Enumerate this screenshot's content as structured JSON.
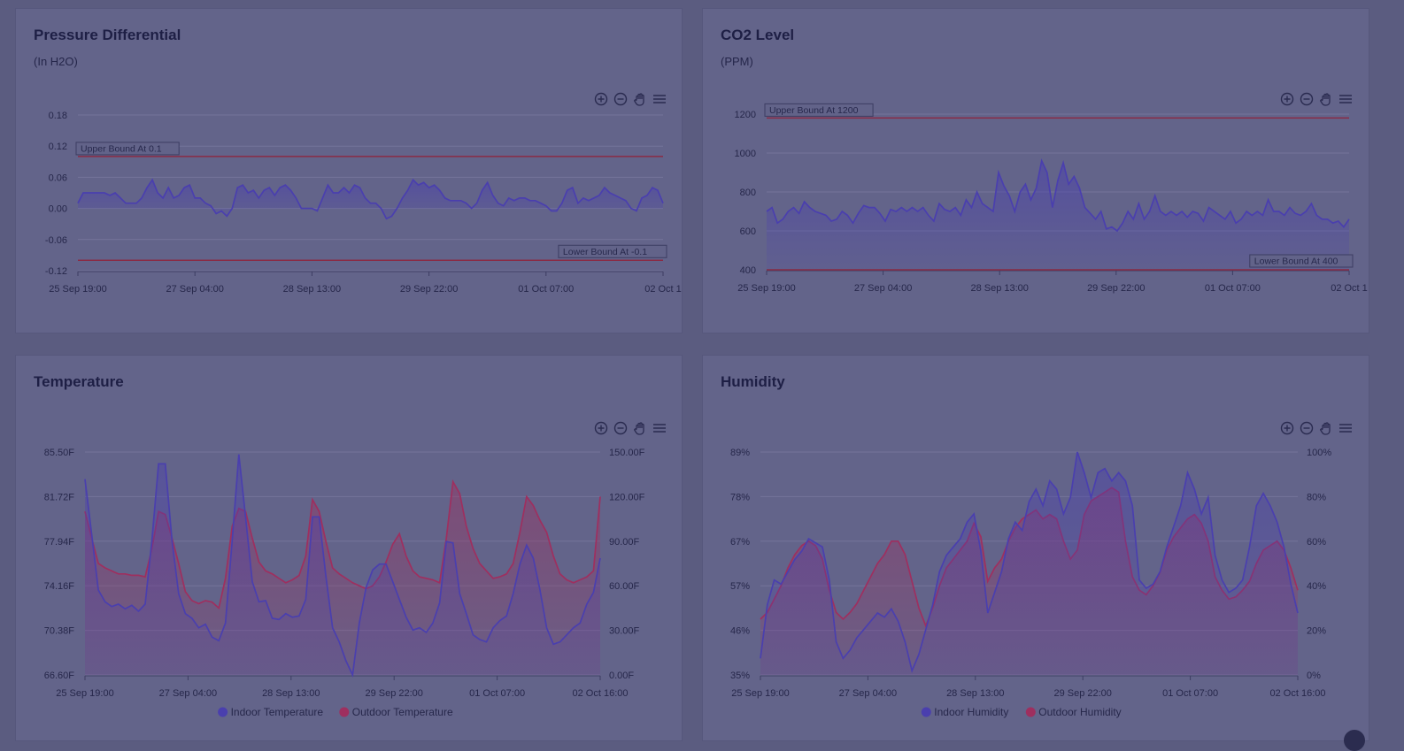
{
  "colors": {
    "indoor": "#4a3fae",
    "outdoor": "#9e2f5f",
    "bound_line": "#8a2b45",
    "grid": "#74759a",
    "panel": "#63648a",
    "title": "#1e1f45"
  },
  "toolbar_icons": [
    "zoom-in-icon",
    "zoom-out-icon",
    "pan-hand-icon",
    "menu-icon"
  ],
  "panels": {
    "pressure": {
      "title": "Pressure Differential",
      "subtitle": "(In H2O)"
    },
    "co2": {
      "title": "CO2 Level",
      "subtitle": "(PPM)"
    },
    "temperature": {
      "title": "Temperature",
      "subtitle": ""
    },
    "humidity": {
      "title": "Humidity",
      "subtitle": ""
    }
  },
  "chart_data": [
    {
      "id": "pressure",
      "type": "area",
      "title": "Pressure Differential",
      "subtitle": "(In H2O)",
      "x_tick_labels": [
        "25 Sep 19:00",
        "27 Sep 04:00",
        "28 Sep 13:00",
        "29 Sep 22:00",
        "01 Oct 07:00",
        "02 Oct 1"
      ],
      "y_tick_labels": [
        "0.18",
        "0.12",
        "0.06",
        "0.00",
        "-0.06",
        "-0.12"
      ],
      "ylim": [
        -0.12,
        0.18
      ],
      "annotations": [
        {
          "label": "Upper Bound At 0.1",
          "y": 0.1
        },
        {
          "label": "Lower Bound At -0.1",
          "y": -0.1
        }
      ],
      "series": [
        {
          "name": "",
          "values": [
            0.01,
            0.03,
            0.03,
            0.03,
            0.03,
            0.03,
            0.025,
            0.03,
            0.02,
            0.01,
            0.01,
            0.01,
            0.02,
            0.04,
            0.055,
            0.03,
            0.02,
            0.04,
            0.02,
            0.025,
            0.04,
            0.045,
            0.02,
            0.02,
            0.01,
            0.005,
            -0.01,
            -0.005,
            -0.015,
            0.0,
            0.04,
            0.045,
            0.03,
            0.035,
            0.02,
            0.035,
            0.04,
            0.025,
            0.04,
            0.045,
            0.035,
            0.02,
            0.0,
            0.0,
            0.0,
            -0.005,
            0.02,
            0.045,
            0.03,
            0.03,
            0.04,
            0.03,
            0.045,
            0.04,
            0.02,
            0.01,
            0.01,
            0.0,
            -0.02,
            -0.015,
            0.0,
            0.02,
            0.035,
            0.055,
            0.045,
            0.05,
            0.04,
            0.045,
            0.035,
            0.02,
            0.015,
            0.015,
            0.015,
            0.01,
            0.0,
            0.01,
            0.035,
            0.05,
            0.025,
            0.01,
            0.005,
            0.02,
            0.015,
            0.02,
            0.02,
            0.015,
            0.015,
            0.01,
            0.005,
            -0.005,
            -0.005,
            0.01,
            0.035,
            0.04,
            0.01,
            0.02,
            0.015,
            0.02,
            0.025,
            0.04,
            0.03,
            0.025,
            0.02,
            0.015,
            0.0,
            -0.005,
            0.02,
            0.025,
            0.04,
            0.035,
            0.01
          ]
        }
      ]
    },
    {
      "id": "co2",
      "type": "area",
      "title": "CO2 Level",
      "subtitle": "(PPM)",
      "x_tick_labels": [
        "25 Sep 19:00",
        "27 Sep 04:00",
        "28 Sep 13:00",
        "29 Sep 22:00",
        "01 Oct 07:00",
        "02 Oct 1"
      ],
      "y_tick_labels": [
        "1200",
        "1000",
        "800",
        "600",
        "400"
      ],
      "ylim": [
        400,
        1200
      ],
      "annotations": [
        {
          "label": "Upper Bound At 1200",
          "y": 1180
        },
        {
          "label": "Lower Bound At 400",
          "y": 400
        }
      ],
      "series": [
        {
          "name": "",
          "values": [
            700,
            720,
            640,
            660,
            700,
            720,
            690,
            750,
            720,
            700,
            690,
            680,
            650,
            660,
            700,
            680,
            640,
            690,
            730,
            720,
            720,
            690,
            650,
            710,
            700,
            720,
            700,
            720,
            700,
            720,
            680,
            650,
            740,
            710,
            700,
            720,
            680,
            760,
            720,
            800,
            740,
            720,
            700,
            900,
            830,
            780,
            700,
            800,
            840,
            760,
            820,
            960,
            900,
            720,
            860,
            950,
            840,
            880,
            820,
            720,
            690,
            660,
            700,
            610,
            620,
            600,
            640,
            700,
            660,
            740,
            660,
            700,
            780,
            700,
            680,
            700,
            680,
            700,
            670,
            700,
            690,
            650,
            720,
            700,
            680,
            660,
            700,
            640,
            660,
            700,
            680,
            700,
            680,
            760,
            700,
            700,
            680,
            720,
            690,
            680,
            700,
            740,
            680,
            660,
            660,
            640,
            650,
            620,
            660
          ]
        }
      ]
    },
    {
      "id": "temperature",
      "type": "area",
      "title": "",
      "x_tick_labels": [
        "25 Sep 19:00",
        "27 Sep 04:00",
        "28 Sep 13:00",
        "29 Sep 22:00",
        "01 Oct 07:00",
        "02 Oct 16:00"
      ],
      "y_left_tick_labels": [
        "85.50F",
        "81.72F",
        "77.94F",
        "74.16F",
        "70.38F",
        "66.60F"
      ],
      "y_right_tick_labels": [
        "150.00F",
        "120.00F",
        "90.00F",
        "60.00F",
        "30.00F",
        "0.00F"
      ],
      "ylim_left": [
        66.6,
        85.5
      ],
      "ylim_right": [
        0,
        150
      ],
      "legend_position": "bottom",
      "series": [
        {
          "name": "Indoor Temperature",
          "axis": "left",
          "values": [
            83.2,
            78.5,
            73.8,
            72.8,
            72.4,
            72.6,
            72.2,
            72.5,
            72.0,
            72.6,
            78.0,
            84.5,
            84.5,
            78.0,
            73.5,
            71.8,
            71.4,
            70.6,
            70.9,
            69.8,
            69.5,
            71.0,
            78.0,
            85.3,
            80.0,
            74.5,
            72.8,
            72.9,
            71.4,
            71.3,
            71.8,
            71.5,
            71.6,
            73.0,
            80.0,
            80.0,
            75.0,
            70.6,
            69.4,
            67.8,
            66.6,
            71.0,
            74.0,
            75.5,
            76.0,
            76.0,
            74.5,
            73.0,
            71.5,
            70.4,
            70.6,
            70.2,
            71.0,
            72.7,
            77.9,
            77.8,
            73.5,
            71.8,
            70.0,
            69.6,
            69.4,
            70.6,
            71.2,
            71.6,
            73.5,
            76.0,
            77.6,
            76.5,
            73.8,
            70.6,
            69.2,
            69.4,
            70.0,
            70.6,
            71.0,
            72.6,
            73.6,
            76.5
          ]
        },
        {
          "name": "Outdoor Temperature",
          "axis": "right",
          "values": [
            110,
            92,
            75,
            72,
            70,
            68,
            68,
            67,
            67,
            66,
            85,
            110,
            108,
            92,
            75,
            56,
            50,
            48,
            50,
            49,
            45,
            65,
            100,
            112,
            110,
            92,
            76,
            70,
            68,
            65,
            62,
            64,
            67,
            80,
            118,
            110,
            90,
            72,
            68,
            65,
            62,
            60,
            58,
            60,
            66,
            76,
            88,
            95,
            80,
            70,
            66,
            65,
            64,
            62,
            92,
            130,
            122,
            100,
            85,
            75,
            70,
            65,
            66,
            68,
            75,
            96,
            120,
            114,
            104,
            96,
            80,
            68,
            64,
            62,
            64,
            66,
            70,
            120
          ]
        }
      ]
    },
    {
      "id": "humidity",
      "type": "area",
      "title": "",
      "x_tick_labels": [
        "25 Sep 19:00",
        "27 Sep 04:00",
        "28 Sep 13:00",
        "29 Sep 22:00",
        "01 Oct 07:00",
        "02 Oct 16:00"
      ],
      "y_left_tick_labels": [
        "89%",
        "78%",
        "67%",
        "57%",
        "46%",
        "35%"
      ],
      "y_right_tick_labels": [
        "100%",
        "80%",
        "60%",
        "40%",
        "20%",
        "0%"
      ],
      "ylim_left": [
        35,
        89
      ],
      "ylim_right": [
        0,
        100
      ],
      "legend_position": "bottom",
      "series": [
        {
          "name": "Indoor Humidity",
          "axis": "left",
          "values": [
            39,
            52,
            58,
            57,
            60,
            63,
            65,
            68,
            67,
            66,
            58,
            43,
            39,
            41,
            44,
            46,
            48,
            50,
            49,
            51,
            48,
            43,
            36,
            40,
            46,
            52,
            60,
            64,
            66,
            68,
            72,
            74,
            65,
            50,
            55,
            60,
            68,
            72,
            70,
            77,
            80,
            76,
            82,
            80,
            74,
            78,
            89,
            84,
            78,
            84,
            85,
            82,
            84,
            82,
            76,
            58,
            56,
            57,
            60,
            66,
            71,
            76,
            84,
            80,
            74,
            78,
            64,
            58,
            55,
            56,
            58,
            66,
            76,
            79,
            76,
            72,
            66,
            57,
            50
          ]
        },
        {
          "name": "Outdoor Humidity",
          "axis": "right",
          "values": [
            25,
            28,
            34,
            40,
            48,
            54,
            58,
            60,
            58,
            52,
            38,
            28,
            25,
            28,
            32,
            38,
            44,
            50,
            54,
            60,
            60,
            54,
            42,
            30,
            22,
            30,
            40,
            48,
            52,
            56,
            60,
            68,
            62,
            42,
            48,
            52,
            60,
            66,
            70,
            72,
            74,
            70,
            72,
            70,
            60,
            52,
            56,
            72,
            78,
            80,
            82,
            84,
            82,
            60,
            44,
            38,
            36,
            40,
            46,
            56,
            62,
            66,
            70,
            72,
            68,
            60,
            44,
            38,
            34,
            35,
            38,
            42,
            50,
            56,
            58,
            60,
            56,
            48,
            38
          ]
        }
      ]
    }
  ]
}
